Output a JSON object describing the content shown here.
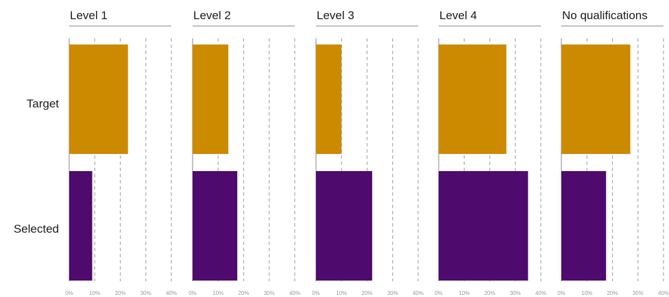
{
  "chart_data": {
    "type": "bar",
    "orientation": "horizontal",
    "grid": true,
    "xlim": [
      0,
      40
    ],
    "x_ticks": [
      "0%",
      "10%",
      "20%",
      "30%",
      "40%"
    ],
    "categories": [
      "Target",
      "Selected"
    ],
    "colors": {
      "Target": "#CC8A00",
      "Selected": "#4F0A6E"
    },
    "panels": [
      {
        "title": "Level 1",
        "values": [
          23,
          9
        ]
      },
      {
        "title": "Level 2",
        "values": [
          14,
          17.5
        ]
      },
      {
        "title": "Level 3",
        "values": [
          10,
          22
        ]
      },
      {
        "title": "Level 4",
        "values": [
          26.5,
          35
        ]
      },
      {
        "title": "No qualifications",
        "values": [
          27,
          17.5
        ]
      }
    ]
  }
}
